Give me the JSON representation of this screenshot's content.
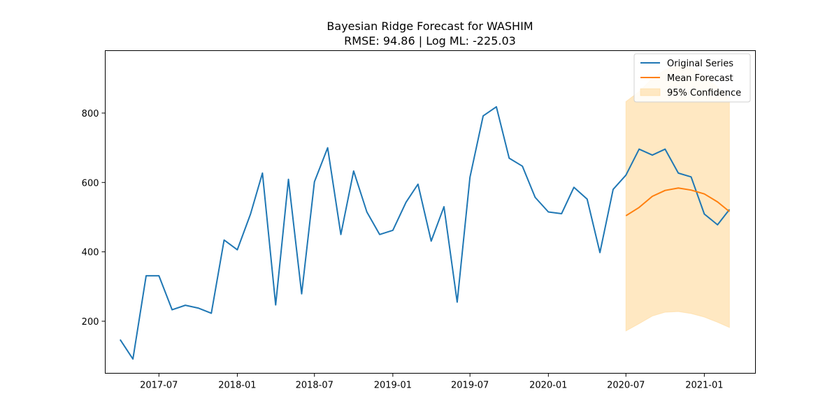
{
  "chart_data": {
    "type": "line",
    "title": "Bayesian Ridge Forecast for WASHIM",
    "subtitle": "RMSE: 94.86 | Log ML: -225.03",
    "xlabel": "",
    "ylabel": "",
    "ylim": [
      50,
      980
    ],
    "xlim": [
      "2017-02-25",
      "2021-05-01"
    ],
    "x_ticks": [
      "2017-07",
      "2018-01",
      "2018-07",
      "2019-01",
      "2019-07",
      "2020-01",
      "2020-07",
      "2021-01"
    ],
    "y_ticks": [
      200,
      400,
      600,
      800
    ],
    "grid": false,
    "legend": {
      "placement": "top-right",
      "entries": [
        "Original Series",
        "Mean Forecast",
        "95% Confidence"
      ]
    },
    "colors": {
      "original": "#1f77b4",
      "forecast": "#ff7f0e",
      "confidence": "#ffe8c2"
    },
    "series": [
      {
        "name": "Original Series",
        "x": [
          "2017-04-01",
          "2017-05-01",
          "2017-06-01",
          "2017-07-01",
          "2017-08-01",
          "2017-09-01",
          "2017-10-01",
          "2017-11-01",
          "2017-12-01",
          "2018-01-01",
          "2018-02-01",
          "2018-03-01",
          "2018-04-01",
          "2018-05-01",
          "2018-06-01",
          "2018-07-01",
          "2018-08-01",
          "2018-09-01",
          "2018-10-01",
          "2018-11-01",
          "2018-12-01",
          "2019-01-01",
          "2019-02-01",
          "2019-03-01",
          "2019-04-01",
          "2019-05-01",
          "2019-06-01",
          "2019-07-01",
          "2019-08-01",
          "2019-09-01",
          "2019-10-01",
          "2019-11-01",
          "2019-12-01",
          "2020-01-01",
          "2020-02-01",
          "2020-03-01",
          "2020-04-01",
          "2020-05-01",
          "2020-06-01",
          "2020-07-01",
          "2020-08-01",
          "2020-09-01",
          "2020-10-01",
          "2020-11-01",
          "2020-12-01",
          "2021-01-01",
          "2021-02-01",
          "2021-03-01"
        ],
        "values": [
          147,
          91,
          331,
          331,
          233,
          246,
          238,
          223,
          434,
          406,
          509,
          627,
          247,
          609,
          279,
          602,
          700,
          450,
          633,
          515,
          450,
          462,
          543,
          595,
          431,
          530,
          255,
          615,
          792,
          818,
          670,
          647,
          557,
          515,
          510,
          586,
          552,
          398,
          580,
          621,
          696,
          679,
          696,
          627,
          616,
          509,
          478,
          522
        ]
      },
      {
        "name": "Mean Forecast",
        "x": [
          "2020-07-01",
          "2020-08-01",
          "2020-09-01",
          "2020-10-01",
          "2020-11-01",
          "2020-12-01",
          "2021-01-01",
          "2021-02-01",
          "2021-03-01"
        ],
        "values": [
          504,
          528,
          560,
          577,
          584,
          578,
          567,
          544,
          516
        ],
        "lower": [
          172,
          193,
          215,
          226,
          228,
          222,
          212,
          197,
          182
        ],
        "upper": [
          833,
          862,
          900,
          925,
          938,
          930,
          908,
          875,
          843
        ]
      }
    ]
  }
}
